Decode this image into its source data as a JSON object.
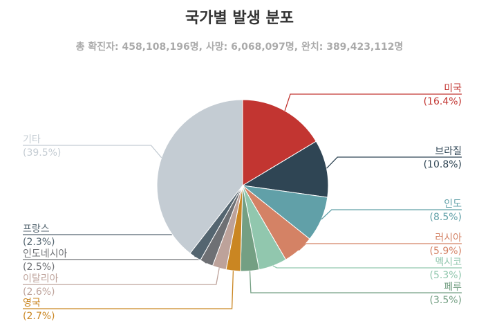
{
  "chart_data": {
    "type": "pie",
    "title": "국가별 발생 분포",
    "subtitle": "총 확진자: 458,108,196명, 사망: 6,068,097명, 완치: 389,423,112명",
    "slices": [
      {
        "label": "미국",
        "percent_text": "(16.4%)",
        "value": 16.4,
        "color": "#c23531"
      },
      {
        "label": "브라질",
        "percent_text": "(10.8%)",
        "value": 10.8,
        "color": "#2f4554"
      },
      {
        "label": "인도",
        "percent_text": "(8.5%)",
        "value": 8.5,
        "color": "#61a0a8"
      },
      {
        "label": "러시아",
        "percent_text": "(5.9%)",
        "value": 5.9,
        "color": "#d48265"
      },
      {
        "label": "멕시코",
        "percent_text": "(5.3%)",
        "value": 5.3,
        "color": "#91c7ae"
      },
      {
        "label": "페루",
        "percent_text": "(3.5%)",
        "value": 3.5,
        "color": "#749f83"
      },
      {
        "label": "영국",
        "percent_text": "(2.7%)",
        "value": 2.7,
        "color": "#ca8622"
      },
      {
        "label": "이탈리아",
        "percent_text": "(2.6%)",
        "value": 2.6,
        "color": "#bda29a"
      },
      {
        "label": "인도네시아",
        "percent_text": "(2.5%)",
        "value": 2.5,
        "color": "#6e7074"
      },
      {
        "label": "프랑스",
        "percent_text": "(2.3%)",
        "value": 2.3,
        "color": "#546570"
      },
      {
        "label": "기타",
        "percent_text": "(39.5%)",
        "value": 39.5,
        "color": "#c4ccd3"
      }
    ]
  }
}
